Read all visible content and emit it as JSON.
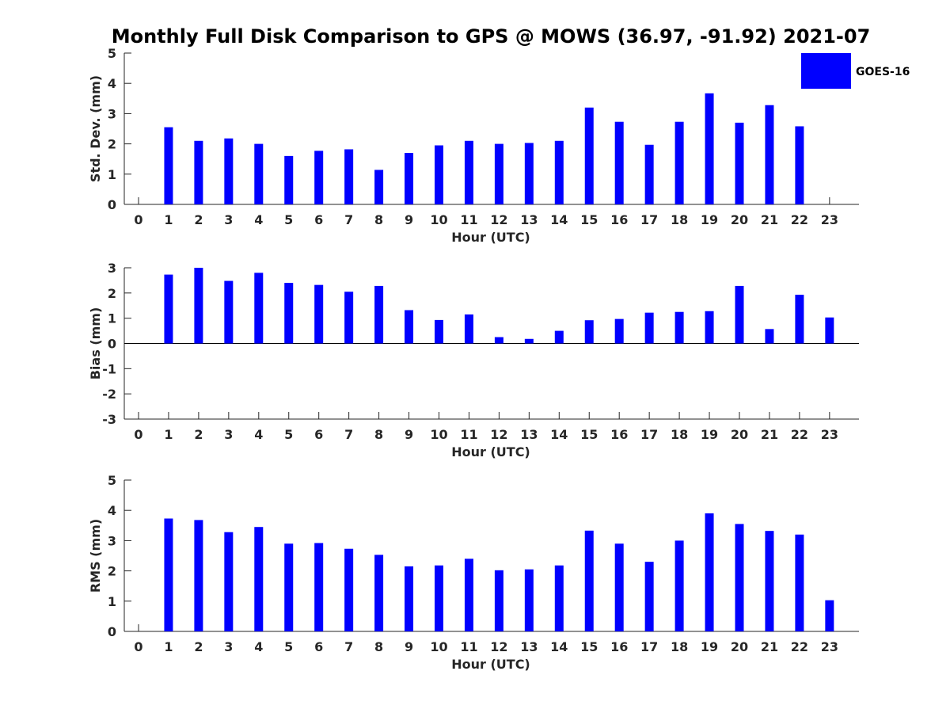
{
  "title": "Monthly Full Disk Comparison to GPS @ MOWS (36.97, -91.92) 2021-07",
  "legend": {
    "label": "GOES-16",
    "color": "#0000ff"
  },
  "chart_data": [
    {
      "type": "bar",
      "name": "std-dev",
      "ylabel": "Std. Dev. (mm)",
      "xlabel": "Hour (UTC)",
      "ylim": [
        0,
        5
      ],
      "yticks": [
        0,
        1,
        2,
        3,
        4,
        5
      ],
      "categories": [
        "0",
        "1",
        "2",
        "3",
        "4",
        "5",
        "6",
        "7",
        "8",
        "9",
        "10",
        "11",
        "12",
        "13",
        "14",
        "15",
        "16",
        "17",
        "18",
        "19",
        "20",
        "21",
        "22",
        "23"
      ],
      "series": [
        {
          "name": "GOES-16",
          "color": "#0000ff",
          "values": [
            null,
            2.55,
            2.1,
            2.18,
            2.0,
            1.6,
            1.77,
            1.82,
            1.14,
            1.7,
            1.95,
            2.1,
            2.0,
            2.03,
            2.1,
            3.2,
            2.73,
            1.97,
            2.73,
            3.67,
            2.7,
            3.28,
            2.58,
            null
          ]
        }
      ]
    },
    {
      "type": "bar",
      "name": "bias",
      "ylabel": "Bias (mm)",
      "xlabel": "Hour (UTC)",
      "ylim": [
        -3,
        3
      ],
      "yticks": [
        -3,
        -2,
        -1,
        0,
        1,
        2,
        3
      ],
      "categories": [
        "0",
        "1",
        "2",
        "3",
        "4",
        "5",
        "6",
        "7",
        "8",
        "9",
        "10",
        "11",
        "12",
        "13",
        "14",
        "15",
        "16",
        "17",
        "18",
        "19",
        "20",
        "21",
        "22",
        "23"
      ],
      "series": [
        {
          "name": "GOES-16",
          "color": "#0000ff",
          "values": [
            null,
            2.73,
            3.0,
            2.48,
            2.8,
            2.4,
            2.32,
            2.05,
            2.28,
            1.32,
            0.93,
            1.15,
            0.25,
            0.18,
            0.5,
            0.92,
            0.97,
            1.22,
            1.25,
            1.28,
            2.28,
            0.57,
            1.93,
            1.03
          ]
        }
      ]
    },
    {
      "type": "bar",
      "name": "rms",
      "ylabel": "RMS (mm)",
      "xlabel": "Hour (UTC)",
      "ylim": [
        0,
        5
      ],
      "yticks": [
        0,
        1,
        2,
        3,
        4,
        5
      ],
      "categories": [
        "0",
        "1",
        "2",
        "3",
        "4",
        "5",
        "6",
        "7",
        "8",
        "9",
        "10",
        "11",
        "12",
        "13",
        "14",
        "15",
        "16",
        "17",
        "18",
        "19",
        "20",
        "21",
        "22",
        "23"
      ],
      "series": [
        {
          "name": "GOES-16",
          "color": "#0000ff",
          "values": [
            null,
            3.73,
            3.68,
            3.28,
            3.45,
            2.9,
            2.92,
            2.73,
            2.53,
            2.15,
            2.18,
            2.4,
            2.02,
            2.05,
            2.18,
            3.33,
            2.9,
            2.3,
            3.0,
            3.9,
            3.55,
            3.32,
            3.2,
            1.03
          ]
        }
      ]
    }
  ]
}
